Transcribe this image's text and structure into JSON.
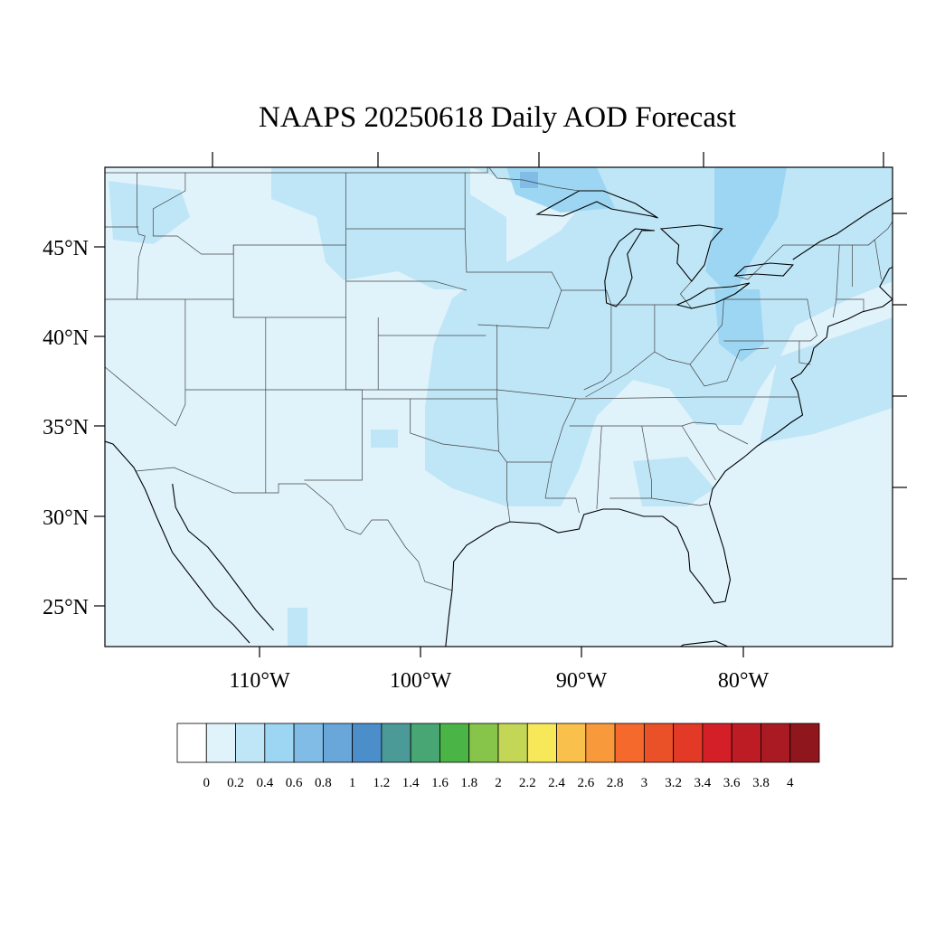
{
  "title": "NAAPS 20250618 Daily AOD Forecast",
  "lat_labels": [
    "45°N",
    "40°N",
    "35°N",
    "30°N",
    "25°N"
  ],
  "lon_labels": [
    "110°W",
    "100°W",
    "90°W",
    "80°W"
  ],
  "colorbar": {
    "labels": [
      "0",
      "0.2",
      "0.4",
      "0.6",
      "0.8",
      "1",
      "1.2",
      "1.4",
      "1.6",
      "1.8",
      "2",
      "2.2",
      "2.4",
      "2.6",
      "2.8",
      "3",
      "3.2",
      "3.4",
      "3.6",
      "3.8",
      "4"
    ],
    "colors": [
      "#ffffff",
      "#e0f3fb",
      "#bfe6f7",
      "#9dd6f3",
      "#80bce5",
      "#69a6da",
      "#4b8ec9",
      "#4b9a98",
      "#47a673",
      "#4bb446",
      "#86c44a",
      "#c4d656",
      "#f7e85a",
      "#f9c04b",
      "#f89a3b",
      "#f56a2c",
      "#ea5128",
      "#e23a26",
      "#d41f28",
      "#be1c24",
      "#a91a22",
      "#8f161c"
    ]
  },
  "map": {
    "projection": "equidistant cylindrical",
    "lon_range": [
      -119,
      -70
    ],
    "lat_range": [
      22.8,
      49.3
    ],
    "background_aod_color": "#e0f3fb"
  }
}
